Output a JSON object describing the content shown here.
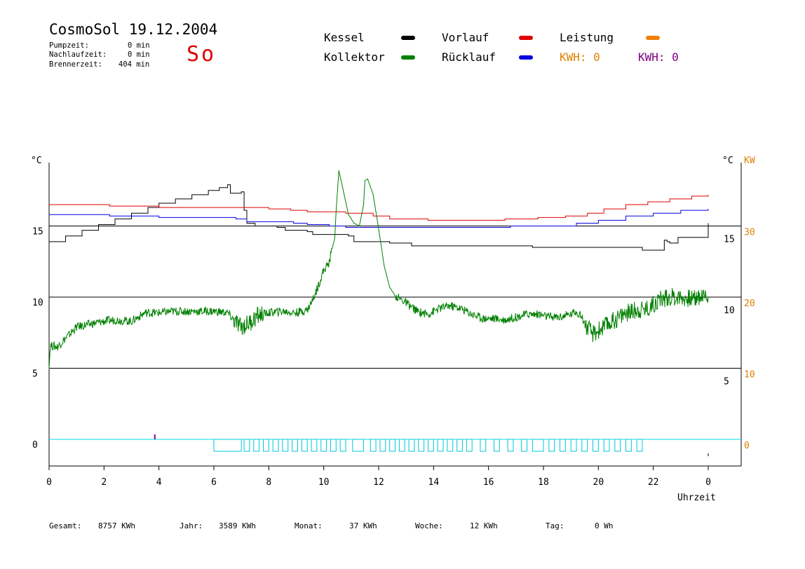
{
  "header": {
    "title": "CosmoSol 19.12.2004",
    "weekday": "So",
    "stats": [
      {
        "label": "Pumpzeit:",
        "value": "0 min"
      },
      {
        "label": "Nachlaufzeit:",
        "value": "0 min"
      },
      {
        "label": "Brennerzeit:",
        "value": "404 min"
      }
    ]
  },
  "legend": {
    "kessel": {
      "label": "Kessel",
      "color": "#000000"
    },
    "kollektor": {
      "label": "Kollektor",
      "color": "#008000"
    },
    "vorlauf": {
      "label": "Vorlauf",
      "color": "#e00000"
    },
    "ruecklauf": {
      "label": "Rücklauf",
      "color": "#0000e0"
    },
    "leistung": {
      "label": "Leistung",
      "color": "#f08000"
    },
    "kwh_orange": {
      "label": "KWH: 0",
      "color": "#e08000"
    },
    "kwh_purple": {
      "label": "KWH: 0",
      "color": "#800080"
    }
  },
  "footer": [
    {
      "label": "Gesamt:",
      "value": "8757 KWh"
    },
    {
      "label": "Jahr:",
      "value": "3589 KWh"
    },
    {
      "label": "Monat:",
      "value": "37 KWh"
    },
    {
      "label": "Woche:",
      "value": "12 KWh"
    },
    {
      "label": "Tag:",
      "value": "0 Wh"
    }
  ],
  "chart_data": {
    "type": "line",
    "xlabel": "Uhrzeit",
    "x_ticks": [
      "0",
      "2",
      "4",
      "6",
      "8",
      "10",
      "12",
      "14",
      "16",
      "18",
      "20",
      "22",
      "0"
    ],
    "xlim": [
      0,
      24
    ],
    "left_axis": {
      "unit": "°C",
      "ticks": [
        "0",
        "5",
        "10",
        "15"
      ],
      "ylim": [
        -2,
        20
      ]
    },
    "right_axis_inner": {
      "unit": "°C",
      "ticks": [
        "5",
        "10",
        "15"
      ]
    },
    "right_axis_outer": {
      "unit": "KW",
      "ticks": [
        "0",
        "10",
        "20",
        "30"
      ],
      "color": "#e08000"
    },
    "grid_lines_y": [
      0,
      5,
      10,
      15
    ],
    "series": [
      {
        "name": "Kessel",
        "color": "#000000",
        "step": true,
        "points": [
          [
            0,
            13.9
          ],
          [
            0.6,
            14.3
          ],
          [
            1.2,
            14.7
          ],
          [
            1.8,
            15.1
          ],
          [
            2.4,
            15.5
          ],
          [
            3.0,
            15.9
          ],
          [
            3.6,
            16.3
          ],
          [
            4.0,
            16.6
          ],
          [
            4.6,
            16.9
          ],
          [
            5.2,
            17.2
          ],
          [
            5.8,
            17.5
          ],
          [
            6.2,
            17.7
          ],
          [
            6.5,
            17.9
          ],
          [
            6.6,
            17.3
          ],
          [
            7.0,
            17.4
          ],
          [
            7.1,
            16.1
          ],
          [
            7.2,
            15.2
          ],
          [
            7.5,
            15.0
          ],
          [
            8.3,
            14.9
          ],
          [
            8.6,
            14.7
          ],
          [
            9.4,
            14.6
          ],
          [
            9.6,
            14.4
          ],
          [
            10.9,
            14.3
          ],
          [
            11.1,
            13.9
          ],
          [
            12.3,
            13.9
          ],
          [
            12.4,
            13.8
          ],
          [
            13.0,
            13.8
          ],
          [
            13.2,
            13.6
          ],
          [
            17.4,
            13.6
          ],
          [
            17.6,
            13.5
          ],
          [
            21.5,
            13.5
          ],
          [
            21.6,
            13.3
          ],
          [
            22.4,
            14.0
          ],
          [
            22.5,
            13.9
          ],
          [
            22.6,
            13.8
          ],
          [
            22.9,
            14.2
          ],
          [
            24.0,
            15.2
          ]
        ]
      },
      {
        "name": "Vorlauf",
        "color": "#e00000",
        "step": true,
        "points": [
          [
            0,
            16.5
          ],
          [
            2.0,
            16.5
          ],
          [
            2.2,
            16.4
          ],
          [
            3.8,
            16.4
          ],
          [
            4.0,
            16.3
          ],
          [
            7.2,
            16.3
          ],
          [
            8.0,
            16.2
          ],
          [
            8.8,
            16.1
          ],
          [
            9.4,
            16.0
          ],
          [
            10.8,
            15.9
          ],
          [
            11.8,
            15.7
          ],
          [
            12.4,
            15.5
          ],
          [
            13.8,
            15.4
          ],
          [
            15.2,
            15.4
          ],
          [
            16.6,
            15.5
          ],
          [
            17.8,
            15.6
          ],
          [
            18.8,
            15.7
          ],
          [
            19.6,
            15.9
          ],
          [
            20.2,
            16.2
          ],
          [
            21.0,
            16.5
          ],
          [
            21.8,
            16.7
          ],
          [
            22.6,
            16.9
          ],
          [
            23.4,
            17.1
          ],
          [
            24.0,
            17.2
          ]
        ]
      },
      {
        "name": "Rücklauf",
        "color": "#0000e0",
        "step": true,
        "points": [
          [
            0,
            15.8
          ],
          [
            2.0,
            15.8
          ],
          [
            2.2,
            15.7
          ],
          [
            4.0,
            15.6
          ],
          [
            6.8,
            15.5
          ],
          [
            7.2,
            15.3
          ],
          [
            8.9,
            15.2
          ],
          [
            9.4,
            15.1
          ],
          [
            10.2,
            15.0
          ],
          [
            10.8,
            14.9
          ],
          [
            12.4,
            14.9
          ],
          [
            14.0,
            14.9
          ],
          [
            15.6,
            14.9
          ],
          [
            16.8,
            15.0
          ],
          [
            18.4,
            15.0
          ],
          [
            19.2,
            15.2
          ],
          [
            20.0,
            15.4
          ],
          [
            21.0,
            15.7
          ],
          [
            22.0,
            15.9
          ],
          [
            23.0,
            16.1
          ],
          [
            24.0,
            16.2
          ]
        ]
      },
      {
        "name": "Kollektor",
        "color": "#008000",
        "step": false,
        "points": [
          [
            0,
            5.2
          ],
          [
            0.05,
            6.6
          ],
          [
            0.3,
            6.5
          ],
          [
            0.5,
            6.9
          ],
          [
            0.8,
            7.5
          ],
          [
            1.0,
            7.9
          ],
          [
            1.5,
            8.1
          ],
          [
            2.0,
            8.3
          ],
          [
            2.4,
            8.4
          ],
          [
            3.0,
            8.3
          ],
          [
            3.5,
            8.9
          ],
          [
            4.0,
            8.9
          ],
          [
            4.5,
            9.0
          ],
          [
            5.0,
            9.0
          ],
          [
            5.5,
            9.0
          ],
          [
            6.0,
            9.0
          ],
          [
            6.5,
            8.9
          ],
          [
            6.8,
            8.2
          ],
          [
            7.0,
            7.9
          ],
          [
            7.3,
            8.2
          ],
          [
            7.6,
            8.7
          ],
          [
            8.0,
            8.9
          ],
          [
            8.5,
            9.0
          ],
          [
            9.0,
            8.9
          ],
          [
            9.4,
            9.1
          ],
          [
            9.6,
            9.8
          ],
          [
            9.8,
            10.8
          ],
          [
            10.0,
            11.9
          ],
          [
            10.2,
            12.4
          ],
          [
            10.3,
            13.4
          ],
          [
            10.4,
            14.1
          ],
          [
            10.45,
            16.0
          ],
          [
            10.55,
            18.9
          ],
          [
            10.7,
            17.6
          ],
          [
            10.9,
            15.8
          ],
          [
            11.1,
            15.2
          ],
          [
            11.3,
            15.0
          ],
          [
            11.45,
            16.5
          ],
          [
            11.5,
            18.2
          ],
          [
            11.6,
            18.3
          ],
          [
            11.8,
            17.2
          ],
          [
            12.0,
            14.8
          ],
          [
            12.2,
            12.2
          ],
          [
            12.4,
            10.7
          ],
          [
            12.6,
            10.1
          ],
          [
            13.0,
            9.6
          ],
          [
            13.4,
            9.0
          ],
          [
            13.8,
            8.8
          ],
          [
            14.2,
            9.2
          ],
          [
            14.6,
            9.4
          ],
          [
            15.0,
            9.2
          ],
          [
            15.4,
            8.8
          ],
          [
            15.8,
            8.5
          ],
          [
            16.2,
            8.5
          ],
          [
            16.6,
            8.4
          ],
          [
            17.0,
            8.6
          ],
          [
            17.4,
            8.8
          ],
          [
            17.8,
            8.8
          ],
          [
            18.2,
            8.6
          ],
          [
            18.6,
            8.6
          ],
          [
            19.0,
            8.8
          ],
          [
            19.2,
            9.0
          ],
          [
            19.4,
            8.6
          ],
          [
            19.6,
            7.8
          ],
          [
            19.8,
            7.4
          ],
          [
            20.2,
            7.9
          ],
          [
            20.6,
            8.4
          ],
          [
            21.0,
            8.9
          ],
          [
            21.4,
            9.1
          ],
          [
            21.8,
            9.2
          ],
          [
            22.2,
            9.8
          ],
          [
            22.6,
            10.0
          ],
          [
            23.0,
            10.0
          ],
          [
            23.4,
            9.9
          ],
          [
            23.8,
            10.1
          ],
          [
            24.0,
            10.0
          ]
        ]
      }
    ],
    "pump_segments": [
      [
        6.0,
        7.0
      ],
      [
        7.1,
        7.3
      ],
      [
        7.45,
        7.65
      ],
      [
        7.8,
        8.0
      ],
      [
        8.15,
        8.35
      ],
      [
        8.5,
        8.7
      ],
      [
        8.85,
        9.05
      ],
      [
        9.2,
        9.4
      ],
      [
        9.55,
        9.75
      ],
      [
        9.9,
        10.1
      ],
      [
        10.25,
        10.45
      ],
      [
        10.6,
        10.8
      ],
      [
        11.05,
        11.45
      ],
      [
        11.7,
        11.9
      ],
      [
        12.05,
        12.25
      ],
      [
        12.4,
        12.6
      ],
      [
        12.75,
        12.95
      ],
      [
        13.1,
        13.3
      ],
      [
        13.45,
        13.65
      ],
      [
        13.8,
        14.0
      ],
      [
        14.15,
        14.35
      ],
      [
        14.5,
        14.7
      ],
      [
        14.85,
        15.05
      ],
      [
        15.2,
        15.4
      ],
      [
        15.7,
        15.9
      ],
      [
        16.2,
        16.4
      ],
      [
        16.7,
        16.9
      ],
      [
        17.2,
        17.4
      ],
      [
        17.6,
        18.0
      ],
      [
        18.2,
        18.4
      ],
      [
        18.6,
        18.8
      ],
      [
        19.0,
        19.2
      ],
      [
        19.4,
        19.6
      ],
      [
        19.8,
        20.0
      ],
      [
        20.2,
        20.4
      ],
      [
        20.6,
        20.8
      ],
      [
        21.0,
        21.2
      ],
      [
        21.4,
        21.6
      ]
    ]
  }
}
